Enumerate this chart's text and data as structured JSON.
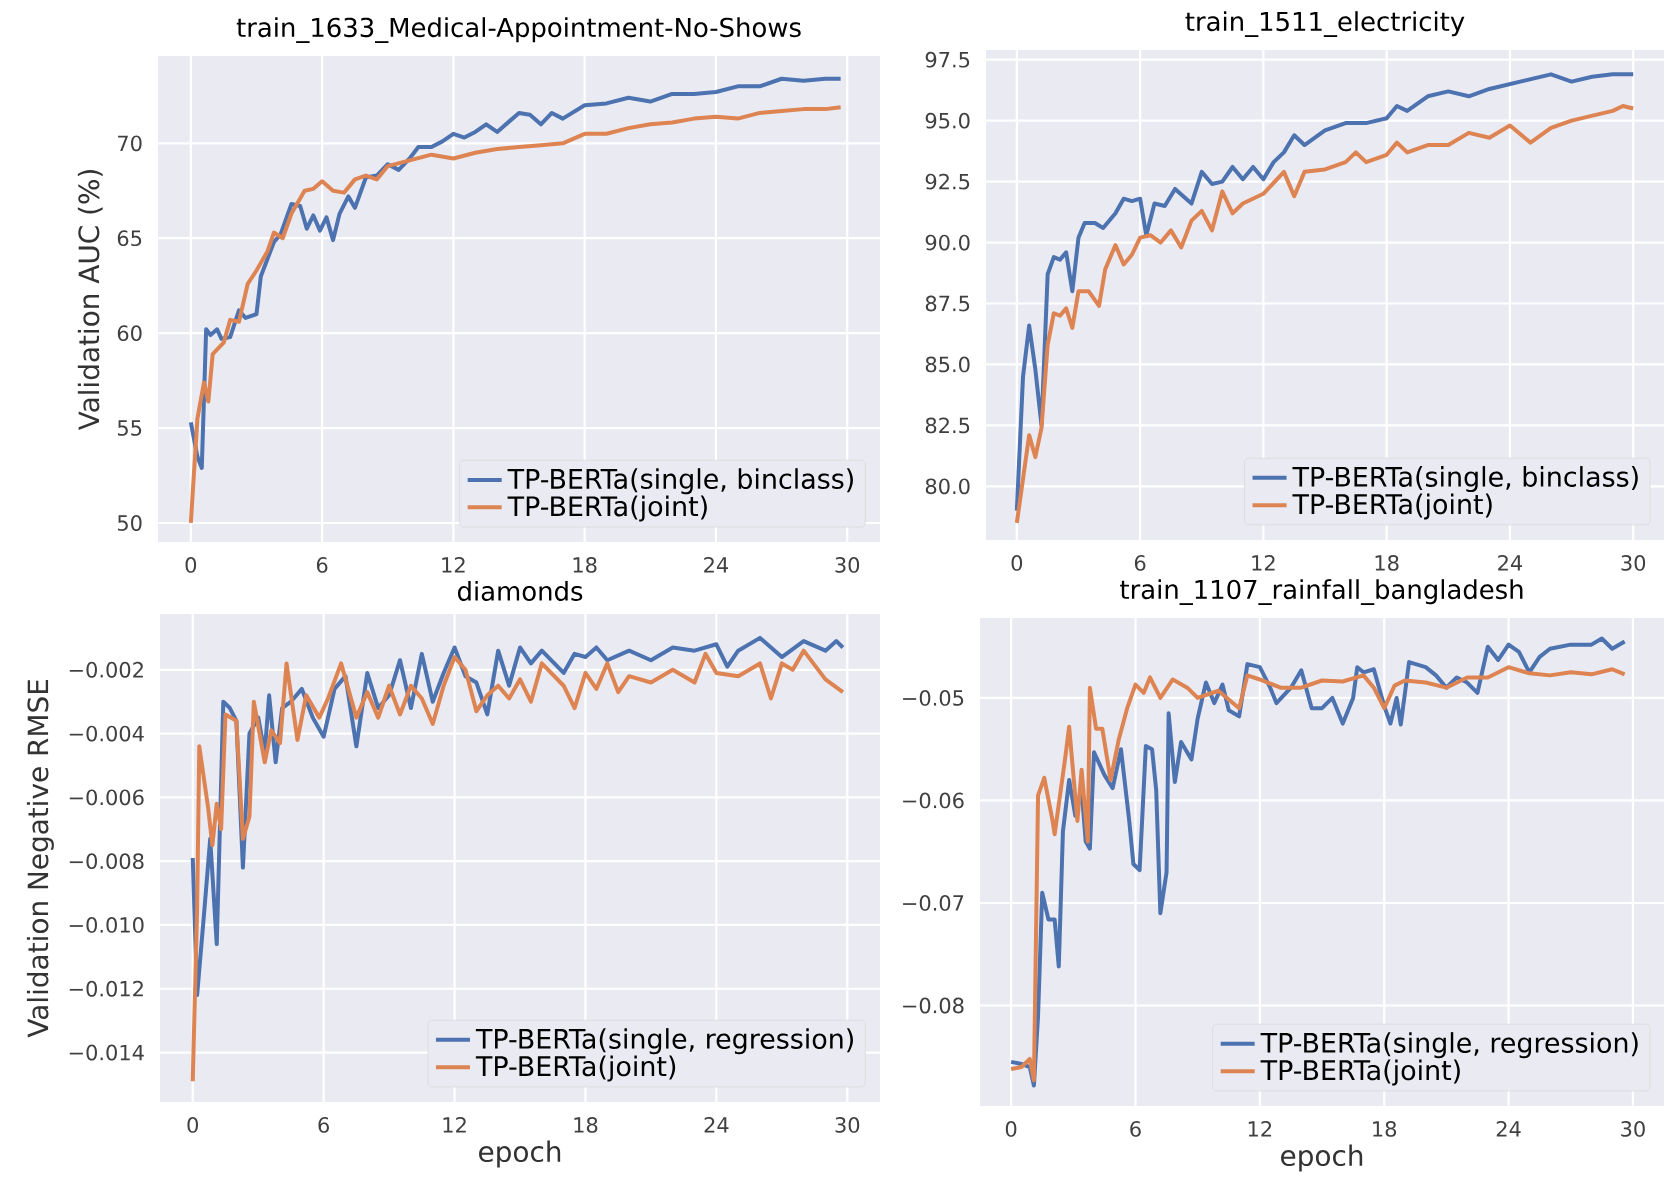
{
  "chart_data": [
    {
      "type": "line",
      "title": "train_1633_Medical-Appointment-No-Shows",
      "ylabel": "Validation AUC (%)",
      "xlim": [
        -1.5,
        31.5
      ],
      "ylim": [
        49.0,
        74.6
      ],
      "xticks": [
        0,
        6,
        12,
        18,
        24,
        30
      ],
      "yticks": [
        50,
        55,
        60,
        65,
        70
      ],
      "grid": true,
      "legend": "bottom right",
      "series": [
        {
          "name": "TP-BERTa(single, binclass)",
          "color": "#4c72b0",
          "x": [
            0,
            0.3,
            0.5,
            0.7,
            0.9,
            1.2,
            1.4,
            1.8,
            2.2,
            2.5,
            3.0,
            3.2,
            3.8,
            4.1,
            4.6,
            5.0,
            5.3,
            5.6,
            5.9,
            6.2,
            6.5,
            6.8,
            7.2,
            7.5,
            8.0,
            8.5,
            9.0,
            9.5,
            10,
            10.4,
            11,
            11.5,
            12,
            12.5,
            13,
            13.5,
            14,
            15,
            15.5,
            16,
            16.5,
            17,
            18,
            19,
            20,
            21,
            22,
            23,
            24,
            25,
            26,
            27,
            28,
            29,
            29.7
          ],
          "values": [
            55.3,
            53.5,
            52.9,
            60.2,
            59.9,
            60.2,
            59.7,
            59.8,
            61.2,
            60.8,
            61.0,
            63.0,
            64.8,
            65.2,
            66.8,
            66.7,
            65.5,
            66.2,
            65.4,
            66.1,
            64.9,
            66.3,
            67.2,
            66.6,
            68.2,
            68.3,
            68.9,
            68.6,
            69.2,
            69.8,
            69.8,
            70.1,
            70.5,
            70.3,
            70.6,
            71.0,
            70.6,
            71.6,
            71.5,
            71.0,
            71.6,
            71.3,
            72.0,
            72.1,
            72.4,
            72.2,
            72.6,
            72.6,
            72.7,
            73.0,
            73.0,
            73.4,
            73.3,
            73.4,
            73.4
          ]
        },
        {
          "name": "TP-BERTa(joint)",
          "color": "#dd8452",
          "x": [
            0,
            0.3,
            0.6,
            0.8,
            1.0,
            1.5,
            1.8,
            2.2,
            2.6,
            3.0,
            3.5,
            3.8,
            4.2,
            4.6,
            5.2,
            5.6,
            6.0,
            6.5,
            7.0,
            7.5,
            8.0,
            8.5,
            9.0,
            10,
            11,
            12,
            13,
            14,
            15,
            16,
            17,
            18,
            19,
            20,
            21,
            22,
            23,
            24,
            25,
            26,
            27,
            28,
            29,
            29.7
          ],
          "values": [
            50.0,
            55.5,
            57.4,
            56.4,
            58.9,
            59.5,
            60.7,
            60.6,
            62.6,
            63.3,
            64.3,
            65.3,
            65.0,
            66.3,
            67.5,
            67.6,
            68.0,
            67.5,
            67.4,
            68.1,
            68.3,
            68.1,
            68.8,
            69.1,
            69.4,
            69.2,
            69.5,
            69.7,
            69.8,
            69.9,
            70.0,
            70.5,
            70.5,
            70.8,
            71.0,
            71.1,
            71.3,
            71.4,
            71.3,
            71.6,
            71.7,
            71.8,
            71.8,
            71.9
          ]
        }
      ]
    },
    {
      "type": "line",
      "title": "train_1511_electricity",
      "xlim": [
        -1.5,
        31.5
      ],
      "ylim": [
        77.8,
        97.9
      ],
      "xticks": [
        0,
        6,
        12,
        18,
        24,
        30
      ],
      "yticks": [
        {
          "value": 80,
          "label": "80.0"
        },
        {
          "value": 82.5,
          "label": "82.5"
        },
        {
          "value": 85,
          "label": "85.0"
        },
        {
          "value": 87.5,
          "label": "87.5"
        },
        {
          "value": 90,
          "label": "90.0"
        },
        {
          "value": 92.5,
          "label": "92.5"
        },
        {
          "value": 95,
          "label": "95.0"
        },
        {
          "value": 97.5,
          "label": "97.5"
        }
      ],
      "grid": true,
      "legend": "bottom right",
      "series": [
        {
          "name": "TP-BERTa(single, binclass)",
          "color": "#4c72b0",
          "x": [
            0,
            0.3,
            0.6,
            0.9,
            1.2,
            1.5,
            1.8,
            2.1,
            2.4,
            2.7,
            3.0,
            3.3,
            3.8,
            4.2,
            4.8,
            5.2,
            5.6,
            6.0,
            6.3,
            6.7,
            7.2,
            7.7,
            8.5,
            9.0,
            9.5,
            10,
            10.5,
            11,
            11.5,
            12,
            12.5,
            13,
            13.5,
            14,
            15,
            16,
            17,
            18,
            18.5,
            19,
            20,
            21,
            22,
            23,
            24,
            25,
            26,
            27,
            28,
            29,
            30
          ],
          "values": [
            79.0,
            84.5,
            86.6,
            84.8,
            82.5,
            88.7,
            89.4,
            89.3,
            89.6,
            88.0,
            90.2,
            90.8,
            90.8,
            90.6,
            91.2,
            91.8,
            91.7,
            91.8,
            90.3,
            91.6,
            91.5,
            92.2,
            91.6,
            92.9,
            92.4,
            92.5,
            93.1,
            92.6,
            93.1,
            92.6,
            93.3,
            93.7,
            94.4,
            94.0,
            94.6,
            94.9,
            94.9,
            95.1,
            95.6,
            95.4,
            96.0,
            96.2,
            96.0,
            96.3,
            96.5,
            96.7,
            96.9,
            96.6,
            96.8,
            96.9,
            96.9
          ]
        },
        {
          "name": "TP-BERTa(joint)",
          "color": "#dd8452",
          "x": [
            0,
            0.3,
            0.6,
            0.9,
            1.2,
            1.5,
            1.8,
            2.1,
            2.4,
            2.7,
            3.0,
            3.5,
            4.0,
            4.3,
            4.8,
            5.2,
            5.6,
            6.0,
            6.5,
            7.0,
            7.5,
            8.0,
            8.5,
            9.0,
            9.5,
            10,
            10.5,
            11,
            12,
            13,
            13.5,
            14,
            15,
            16,
            16.5,
            17,
            18,
            18.5,
            19,
            20,
            21,
            22,
            23,
            24,
            25,
            26,
            27,
            28,
            29,
            29.5,
            30
          ],
          "values": [
            78.5,
            80.3,
            82.1,
            81.2,
            82.4,
            85.8,
            87.1,
            87.0,
            87.3,
            86.5,
            88.0,
            88.0,
            87.4,
            88.9,
            89.9,
            89.1,
            89.5,
            90.2,
            90.3,
            90.0,
            90.5,
            89.8,
            90.9,
            91.3,
            90.5,
            92.1,
            91.2,
            91.6,
            92.0,
            92.9,
            91.9,
            92.9,
            93.0,
            93.3,
            93.7,
            93.3,
            93.6,
            94.1,
            93.7,
            94.0,
            94.0,
            94.5,
            94.3,
            94.8,
            94.1,
            94.7,
            95.0,
            95.2,
            95.4,
            95.6,
            95.5
          ]
        }
      ]
    },
    {
      "type": "line",
      "title": "diamonds",
      "xlabel": "epoch",
      "ylabel": "Validation Negative RMSE",
      "xlim": [
        -1.5,
        31.5
      ],
      "ylim": [
        -0.01555,
        -0.00025
      ],
      "xticks": [
        0,
        6,
        12,
        18,
        24,
        30
      ],
      "yticks": [
        {
          "value": -0.014,
          "label": "−0.014"
        },
        {
          "value": -0.012,
          "label": "−0.012"
        },
        {
          "value": -0.01,
          "label": "−0.010"
        },
        {
          "value": -0.008,
          "label": "−0.008"
        },
        {
          "value": -0.006,
          "label": "−0.006"
        },
        {
          "value": -0.004,
          "label": "−0.004"
        },
        {
          "value": -0.002,
          "label": "−0.002"
        }
      ],
      "grid": true,
      "legend": "bottom right",
      "series": [
        {
          "name": "TP-BERTa(single, regression)",
          "color": "#4c72b0",
          "x": [
            0,
            0.2,
            0.5,
            0.8,
            1.1,
            1.4,
            1.7,
            2.0,
            2.3,
            2.6,
            3.0,
            3.3,
            3.5,
            3.8,
            4.1,
            4.5,
            5.0,
            5.5,
            6.0,
            6.5,
            7.0,
            7.5,
            8.0,
            8.5,
            9.0,
            9.5,
            10,
            10.5,
            11,
            11.5,
            12,
            12.5,
            13,
            13.5,
            14,
            14.5,
            15,
            15.5,
            16,
            17,
            17.5,
            18,
            18.5,
            19,
            20,
            21,
            22,
            23,
            24,
            24.5,
            25,
            26,
            27,
            28,
            29,
            29.5,
            29.8
          ],
          "values": [
            -0.0079,
            -0.0122,
            -0.0098,
            -0.0073,
            -0.0106,
            -0.003,
            -0.0032,
            -0.0036,
            -0.0082,
            -0.004,
            -0.0035,
            -0.0046,
            -0.0028,
            -0.0049,
            -0.0032,
            -0.003,
            -0.0026,
            -0.0035,
            -0.0041,
            -0.0026,
            -0.0022,
            -0.0044,
            -0.0021,
            -0.0032,
            -0.0028,
            -0.0017,
            -0.0032,
            -0.0015,
            -0.003,
            -0.0021,
            -0.0013,
            -0.0022,
            -0.0024,
            -0.0034,
            -0.0014,
            -0.0025,
            -0.0013,
            -0.0018,
            -0.0014,
            -0.0021,
            -0.0015,
            -0.0016,
            -0.0013,
            -0.0017,
            -0.0014,
            -0.0017,
            -0.0013,
            -0.0014,
            -0.0012,
            -0.0019,
            -0.0014,
            -0.001,
            -0.0016,
            -0.0011,
            -0.0014,
            -0.0011,
            -0.0013
          ]
        },
        {
          "name": "TP-BERTa(joint)",
          "color": "#dd8452",
          "x": [
            0,
            0.2,
            0.3,
            0.7,
            0.9,
            1.1,
            1.3,
            1.5,
            2.0,
            2.3,
            2.6,
            2.8,
            3.3,
            3.6,
            4.0,
            4.3,
            4.8,
            5.2,
            5.8,
            6.2,
            6.8,
            7.5,
            8.0,
            8.5,
            9.0,
            9.5,
            10,
            10.5,
            11,
            11.5,
            12,
            12.5,
            13,
            13.5,
            14,
            14.5,
            15,
            15.5,
            16,
            17,
            17.5,
            18,
            18.5,
            19,
            19.5,
            20,
            21,
            22,
            23,
            23.5,
            24,
            25,
            26,
            26.5,
            27,
            27.5,
            28,
            29,
            29.8
          ],
          "values": [
            -0.0149,
            -0.0095,
            -0.0044,
            -0.0063,
            -0.0075,
            -0.0062,
            -0.007,
            -0.0034,
            -0.0036,
            -0.0073,
            -0.0066,
            -0.003,
            -0.0049,
            -0.0039,
            -0.0043,
            -0.0018,
            -0.0042,
            -0.0028,
            -0.0035,
            -0.0029,
            -0.0018,
            -0.0035,
            -0.0027,
            -0.0035,
            -0.0025,
            -0.0034,
            -0.0025,
            -0.0029,
            -0.0037,
            -0.0025,
            -0.0016,
            -0.002,
            -0.0033,
            -0.0028,
            -0.0025,
            -0.0029,
            -0.0023,
            -0.003,
            -0.0018,
            -0.0025,
            -0.0032,
            -0.0021,
            -0.0026,
            -0.0018,
            -0.0027,
            -0.0022,
            -0.0024,
            -0.002,
            -0.0024,
            -0.0015,
            -0.0021,
            -0.0022,
            -0.0018,
            -0.0029,
            -0.0018,
            -0.002,
            -0.0014,
            -0.0023,
            -0.0027
          ]
        }
      ]
    },
    {
      "type": "line",
      "title": "train_1107_rainfall_bangladesh",
      "xlabel": "epoch",
      "xlim": [
        -1.5,
        31.5
      ],
      "ylim": [
        -0.0898,
        -0.0422
      ],
      "xticks": [
        0,
        6,
        12,
        18,
        24,
        30
      ],
      "yticks": [
        {
          "value": -0.08,
          "label": "−0.08"
        },
        {
          "value": -0.07,
          "label": "−0.07"
        },
        {
          "value": -0.06,
          "label": "−0.06"
        },
        {
          "value": -0.05,
          "label": "−0.05"
        }
      ],
      "grid": true,
      "legend": "bottom right",
      "series": [
        {
          "name": "TP-BERTa(single, regression)",
          "color": "#4c72b0",
          "x": [
            0,
            0.5,
            0.9,
            1.1,
            1.3,
            1.5,
            1.8,
            2.1,
            2.3,
            2.5,
            2.8,
            3.1,
            3.4,
            3.6,
            3.8,
            4.0,
            4.5,
            4.9,
            5.3,
            5.7,
            5.9,
            6.2,
            6.5,
            6.8,
            7.0,
            7.2,
            7.5,
            7.6,
            7.9,
            8.2,
            8.7,
            9.0,
            9.4,
            9.8,
            10.2,
            10.5,
            11,
            11.4,
            12,
            12.5,
            12.8,
            13.5,
            14,
            14.5,
            15,
            15.5,
            16,
            16.5,
            16.7,
            17,
            17.5,
            18,
            18.3,
            18.6,
            18.8,
            19.2,
            20,
            20.5,
            21,
            21.5,
            22,
            22.5,
            23,
            23.5,
            24,
            24.5,
            25,
            25.5,
            26,
            27,
            28,
            28.5,
            29,
            29.6
          ],
          "values": [
            -0.0855,
            -0.0857,
            -0.086,
            -0.0878,
            -0.081,
            -0.069,
            -0.0716,
            -0.0716,
            -0.0762,
            -0.063,
            -0.058,
            -0.0615,
            -0.059,
            -0.064,
            -0.0647,
            -0.0553,
            -0.0575,
            -0.0588,
            -0.055,
            -0.062,
            -0.0662,
            -0.0668,
            -0.0547,
            -0.055,
            -0.059,
            -0.071,
            -0.067,
            -0.0515,
            -0.0582,
            -0.0543,
            -0.056,
            -0.052,
            -0.0485,
            -0.0505,
            -0.0487,
            -0.0512,
            -0.0518,
            -0.0467,
            -0.047,
            -0.049,
            -0.0505,
            -0.049,
            -0.0473,
            -0.051,
            -0.051,
            -0.05,
            -0.0525,
            -0.05,
            -0.047,
            -0.0475,
            -0.0472,
            -0.0508,
            -0.0525,
            -0.05,
            -0.0526,
            -0.0465,
            -0.047,
            -0.0478,
            -0.049,
            -0.048,
            -0.0485,
            -0.0495,
            -0.045,
            -0.0463,
            -0.0448,
            -0.0455,
            -0.0475,
            -0.046,
            -0.0452,
            -0.0448,
            -0.0448,
            -0.0442,
            -0.0452,
            -0.0445
          ]
        },
        {
          "name": "TP-BERTa(joint)",
          "color": "#dd8452",
          "x": [
            0,
            0.5,
            0.9,
            1.1,
            1.3,
            1.6,
            2.0,
            2.1,
            2.6,
            2.8,
            3.2,
            3.4,
            3.7,
            3.8,
            4.1,
            4.4,
            4.8,
            5.2,
            5.6,
            6.0,
            6.4,
            6.7,
            7.2,
            7.8,
            8.5,
            9,
            10,
            11,
            11.4,
            12,
            13,
            14,
            15,
            16,
            17,
            17.5,
            18,
            18.5,
            19,
            20,
            21,
            22,
            23,
            24,
            25,
            26,
            27,
            28,
            29,
            29.6
          ],
          "values": [
            -0.0862,
            -0.086,
            -0.0852,
            -0.0873,
            -0.0595,
            -0.0578,
            -0.062,
            -0.0633,
            -0.056,
            -0.0528,
            -0.062,
            -0.057,
            -0.064,
            -0.049,
            -0.053,
            -0.053,
            -0.058,
            -0.054,
            -0.051,
            -0.0487,
            -0.0495,
            -0.048,
            -0.05,
            -0.0482,
            -0.049,
            -0.05,
            -0.0493,
            -0.051,
            -0.0478,
            -0.0482,
            -0.049,
            -0.049,
            -0.0483,
            -0.0484,
            -0.0478,
            -0.049,
            -0.051,
            -0.0488,
            -0.0483,
            -0.0485,
            -0.049,
            -0.048,
            -0.048,
            -0.047,
            -0.0476,
            -0.0478,
            -0.0475,
            -0.0477,
            -0.0472,
            -0.0477
          ]
        }
      ]
    }
  ]
}
